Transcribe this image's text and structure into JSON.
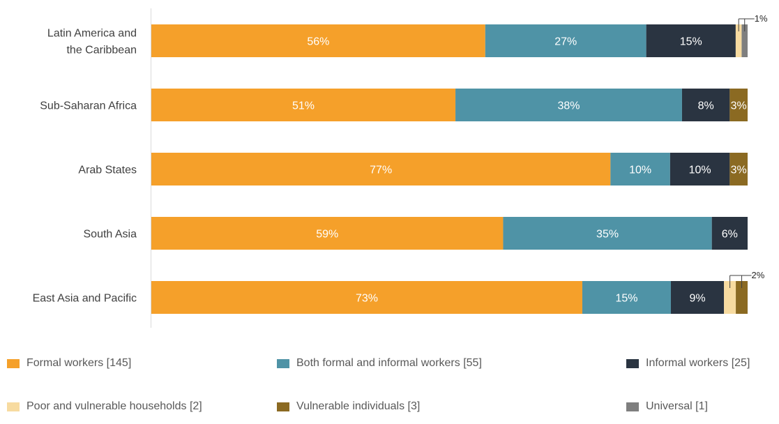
{
  "chart_data": {
    "type": "bar",
    "orientation": "horizontal",
    "stacked": true,
    "percent_stacked": true,
    "categories": [
      [
        "Latin America and",
        "the Caribbean"
      ],
      [
        "Sub-Saharan Africa"
      ],
      [
        "Arab States"
      ],
      [
        "South Asia"
      ],
      [
        "East Asia and Pacific"
      ]
    ],
    "series": [
      {
        "name": "Formal workers [145]",
        "color": "#F5A02A",
        "values": [
          56,
          51,
          77,
          59,
          73
        ],
        "labels": [
          "56%",
          "51%",
          "77%",
          "59%",
          "73%"
        ]
      },
      {
        "name": "Both formal and informal workers [55]",
        "color": "#4F93A6",
        "values": [
          27,
          38,
          10,
          35,
          15
        ],
        "labels": [
          "27%",
          "38%",
          "10%",
          "35%",
          "15%"
        ]
      },
      {
        "name": "Informal workers [25]",
        "color": "#2A3441",
        "values": [
          15,
          8,
          10,
          6,
          9
        ],
        "labels": [
          "15%",
          "8%",
          "10%",
          "6%",
          "9%"
        ]
      },
      {
        "name": "Poor and vulnerable households [2]",
        "color": "#F7DBA0",
        "values": [
          1,
          0,
          0,
          0,
          2
        ],
        "labels": [
          "",
          "",
          "",
          "",
          ""
        ]
      },
      {
        "name": "Vulnerable individuals [3]",
        "color": "#8B6A22",
        "values": [
          0,
          3,
          3,
          0,
          2
        ],
        "labels": [
          "",
          "3%",
          "3%",
          "",
          ""
        ]
      },
      {
        "name": "Universal [1]",
        "color": "#7F7F7F",
        "values": [
          1,
          0,
          0,
          0,
          0
        ],
        "labels": [
          "",
          "",
          "",
          "",
          ""
        ]
      }
    ],
    "callouts": [
      {
        "category_index": 0,
        "text": "1%"
      },
      {
        "category_index": 4,
        "text": "2%"
      }
    ],
    "xlim": [
      0,
      100
    ],
    "grid": false,
    "legend_position": "bottom",
    "title": "",
    "xlabel": "",
    "ylabel": ""
  }
}
